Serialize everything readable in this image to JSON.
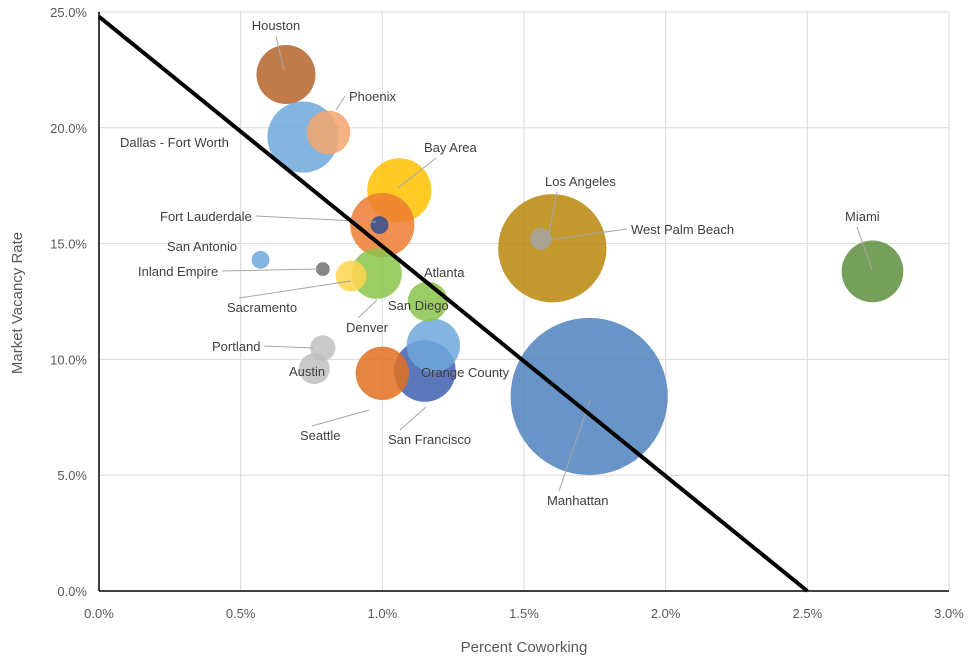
{
  "chart_data": {
    "type": "scatter",
    "xlabel": "Percent Coworking",
    "ylabel": "Market Vacancy Rate",
    "xlim": [
      0,
      3.0
    ],
    "ylim": [
      0,
      25.0
    ],
    "x_ticks": [
      "0.0%",
      "0.5%",
      "1.0%",
      "1.5%",
      "2.0%",
      "2.5%",
      "3.0%"
    ],
    "y_ticks": [
      "0.0%",
      "5.0%",
      "10.0%",
      "15.0%",
      "20.0%",
      "25.0%"
    ],
    "grid": true,
    "legend": "none",
    "bubble_size": "relative",
    "trend_line": {
      "x": [
        0.0,
        2.5
      ],
      "y": [
        24.8,
        0.0
      ],
      "color": "#000000"
    },
    "points": [
      {
        "label": "Houston",
        "x": 0.66,
        "y": 22.3,
        "size": 1100,
        "color": "#B5642A"
      },
      {
        "label": "Phoenix",
        "x": 0.81,
        "y": 19.8,
        "size": 600,
        "color": "#F4A46C"
      },
      {
        "label": "Dallas - Fort Worth",
        "x": 0.72,
        "y": 19.6,
        "size": 1600,
        "color": "#6FA8DC"
      },
      {
        "label": "Bay Area",
        "x": 1.06,
        "y": 17.3,
        "size": 1300,
        "color": "#FFC000"
      },
      {
        "label": "Fort Lauderdale",
        "x": 0.99,
        "y": 15.8,
        "size": 100,
        "color": "#2F4F8F"
      },
      {
        "label": "Los Angeles",
        "x": 1.56,
        "y": 15.2,
        "size": 150,
        "color": "#A5A5A5"
      },
      {
        "label": "West Palm Beach",
        "x": 1.6,
        "y": 14.8,
        "size": 3700,
        "color": "#B8860B"
      },
      {
        "label": "Miami",
        "x": 2.73,
        "y": 13.8,
        "size": 1200,
        "color": "#5E8E3E"
      },
      {
        "label": "San Antonio",
        "x": 0.57,
        "y": 14.3,
        "size": 100,
        "color": "#6FA8DC"
      },
      {
        "label": "Inland Empire",
        "x": 0.79,
        "y": 13.9,
        "size": 60,
        "color": "#707070"
      },
      {
        "label": "Atlanta",
        "x": 0.98,
        "y": 13.7,
        "size": 800,
        "color": "#8BC34A"
      },
      {
        "label": "Sacramento",
        "x": 0.89,
        "y": 13.6,
        "size": 300,
        "color": "#FFD54F"
      },
      {
        "label": "San Diego",
        "x": 1.16,
        "y": 12.5,
        "size": 500,
        "color": "#8BC34A"
      },
      {
        "label": "Denver",
        "x": 1.0,
        "y": 15.8,
        "size": 1300,
        "color": "#ED7D31"
      },
      {
        "label": "Portland",
        "x": 0.79,
        "y": 10.5,
        "size": 200,
        "color": "#BFBFBF"
      },
      {
        "label": "Austin",
        "x": 0.76,
        "y": 9.6,
        "size": 300,
        "color": "#BFBFBF"
      },
      {
        "label": "Orange County",
        "x": 1.18,
        "y": 10.6,
        "size": 900,
        "color": "#6FA8DC"
      },
      {
        "label": "San Francisco",
        "x": 1.15,
        "y": 9.5,
        "size": 1200,
        "color": "#3F5FAF"
      },
      {
        "label": "Seattle",
        "x": 1.0,
        "y": 9.4,
        "size": 900,
        "color": "#E07020"
      },
      {
        "label": "Manhattan",
        "x": 1.73,
        "y": 8.4,
        "size": 7800,
        "color": "#4F81BD"
      }
    ]
  }
}
